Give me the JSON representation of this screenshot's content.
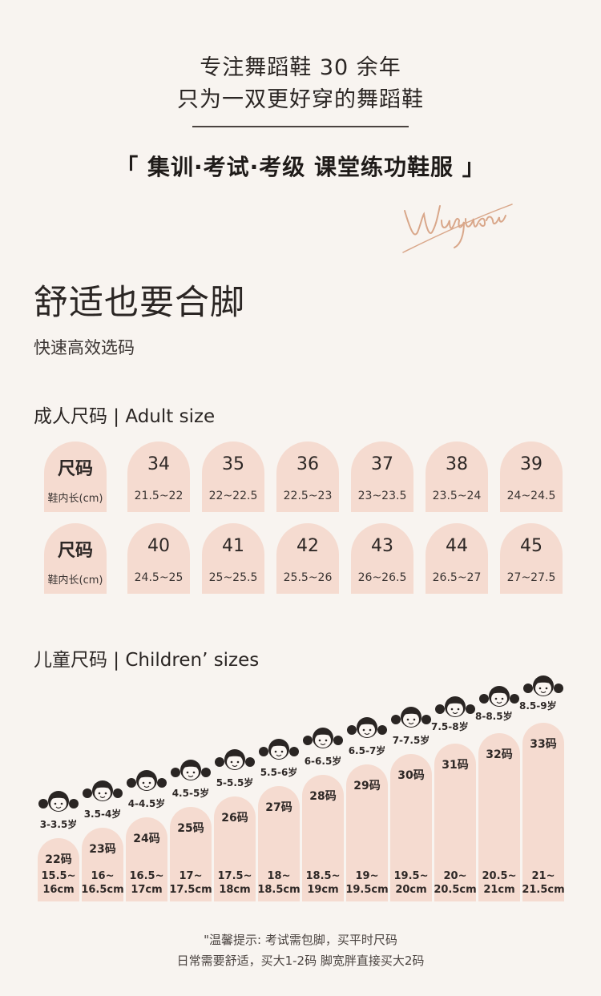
{
  "header": {
    "tagline_1": "专注舞蹈鞋 30 余年",
    "tagline_2": "只为一双更好穿的舞蹈鞋",
    "subtitle": "「 集训·考试·考级 课堂练功鞋服 」",
    "signature": "Wuyuan"
  },
  "intro": {
    "title": "舒适也要合脚",
    "subtitle": "快速高效选码"
  },
  "adult": {
    "title": "成人尺码 | Adult size",
    "header_label": "尺码",
    "header_sub": "鞋内长(cm)",
    "rows": [
      [
        {
          "size": "34",
          "length": "21.5~22"
        },
        {
          "size": "35",
          "length": "22~22.5"
        },
        {
          "size": "36",
          "length": "22.5~23"
        },
        {
          "size": "37",
          "length": "23~23.5"
        },
        {
          "size": "38",
          "length": "23.5~24"
        },
        {
          "size": "39",
          "length": "24~24.5"
        }
      ],
      [
        {
          "size": "40",
          "length": "24.5~25"
        },
        {
          "size": "41",
          "length": "25~25.5"
        },
        {
          "size": "42",
          "length": "25.5~26"
        },
        {
          "size": "43",
          "length": "26~26.5"
        },
        {
          "size": "44",
          "length": "26.5~27"
        },
        {
          "size": "45",
          "length": "27~27.5"
        }
      ]
    ]
  },
  "children": {
    "title": "儿童尺码 | Children’ sizes",
    "items": [
      {
        "code": "22码",
        "age": "3-3.5岁",
        "len1": "15.5~",
        "len2": "16cm"
      },
      {
        "code": "23码",
        "age": "3.5-4岁",
        "len1": "16~",
        "len2": "16.5cm"
      },
      {
        "code": "24码",
        "age": "4-4.5岁",
        "len1": "16.5~",
        "len2": "17cm"
      },
      {
        "code": "25码",
        "age": "4.5-5岁",
        "len1": "17~",
        "len2": "17.5cm"
      },
      {
        "code": "26码",
        "age": "5-5.5岁",
        "len1": "17.5~",
        "len2": "18cm"
      },
      {
        "code": "27码",
        "age": "5.5-6岁",
        "len1": "18~",
        "len2": "18.5cm"
      },
      {
        "code": "28码",
        "age": "6-6.5岁",
        "len1": "18.5~",
        "len2": "19cm"
      },
      {
        "code": "29码",
        "age": "6.5-7岁",
        "len1": "19~",
        "len2": "19.5cm"
      },
      {
        "code": "30码",
        "age": "7-7.5岁",
        "len1": "19.5~",
        "len2": "20cm"
      },
      {
        "code": "31码",
        "age": "7.5-8岁",
        "len1": "20~",
        "len2": "20.5cm"
      },
      {
        "code": "32码",
        "age": "8-8.5岁",
        "len1": "20.5~",
        "len2": "21cm"
      },
      {
        "code": "33码",
        "age": "8.5-9岁",
        "len1": "21~",
        "len2": "21.5cm"
      }
    ]
  },
  "footer": {
    "tip_1": "\"温馨提示: 考试需包脚，买平时尺码",
    "tip_2": "日常需要舒适，买大1-2码 脚宽胖直接买大2码"
  },
  "colors": {
    "background": "#f8f4f0",
    "card": "#f5dbd0",
    "signature": "#d9a78a"
  }
}
